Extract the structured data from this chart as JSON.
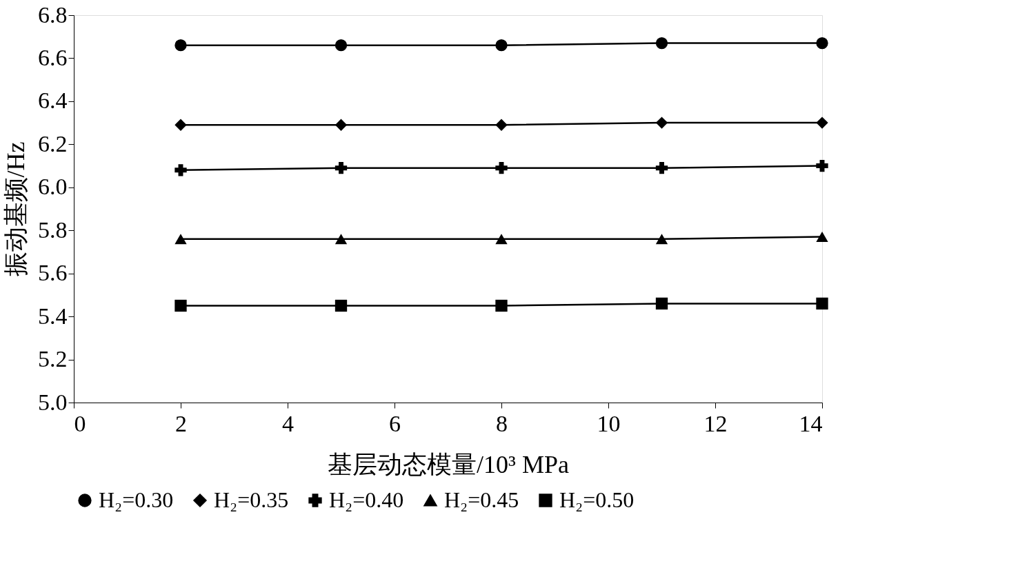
{
  "chart_data": {
    "type": "line",
    "xlabel": "基层动态模量/10³ MPa",
    "ylabel": "振动基频/Hz",
    "x": [
      2,
      5,
      8,
      11,
      14
    ],
    "series": [
      {
        "name": "H₂=0.30",
        "color": "#000000",
        "marker": "circle",
        "values": [
          6.66,
          6.66,
          6.66,
          6.67,
          6.67
        ]
      },
      {
        "name": "H₂=0.35",
        "color": "#000000",
        "marker": "diamond",
        "values": [
          6.29,
          6.29,
          6.29,
          6.3,
          6.3
        ]
      },
      {
        "name": "H₂=0.40",
        "color": "#000000",
        "marker": "cross",
        "values": [
          6.08,
          6.09,
          6.09,
          6.09,
          6.1
        ]
      },
      {
        "name": "H₂=0.45",
        "color": "#000000",
        "marker": "triangle",
        "values": [
          5.76,
          5.76,
          5.76,
          5.76,
          5.77
        ]
      },
      {
        "name": "H₂=0.50",
        "color": "#000000",
        "marker": "square",
        "values": [
          5.45,
          5.45,
          5.45,
          5.46,
          5.46
        ]
      }
    ],
    "xlim": [
      0,
      14
    ],
    "xticks": [
      0,
      2,
      4,
      6,
      8,
      10,
      12,
      14
    ],
    "ylim": [
      5.0,
      6.8
    ],
    "yticks": [
      {
        "value": 5.0,
        "label": "5.0"
      },
      5.2,
      5.4,
      5.6,
      5.8,
      {
        "value": 6.0,
        "label": "6.0"
      },
      6.2,
      6.4,
      6.6,
      6.8
    ],
    "grid": false,
    "legend": "bottom",
    "line_style": "solid"
  }
}
